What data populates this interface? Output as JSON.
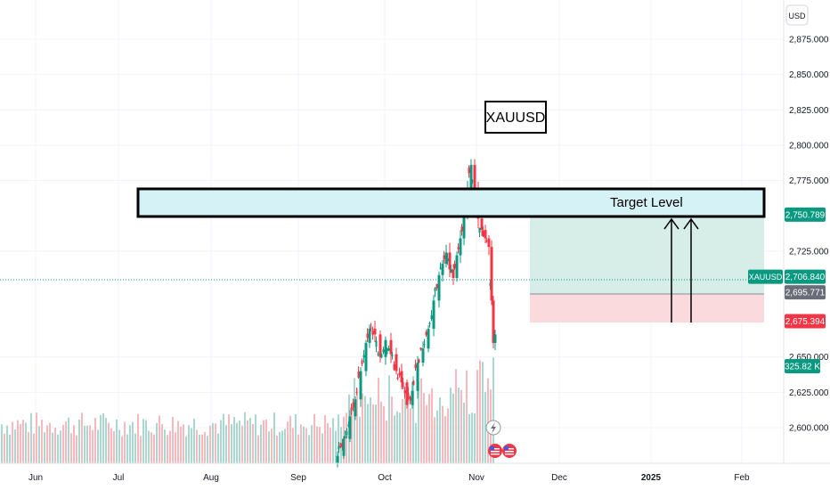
{
  "chart_data": {
    "type": "candlestick",
    "symbol": "XAUUSD",
    "currency": "USD",
    "y_ticks": [
      {
        "value": 2875,
        "label": "2,875.000"
      },
      {
        "value": 2850,
        "label": "2,850.000"
      },
      {
        "value": 2825,
        "label": "2,825.000"
      },
      {
        "value": 2800,
        "label": "2,800.000"
      },
      {
        "value": 2775,
        "label": "2,775.000"
      },
      {
        "value": 2725,
        "label": "2,725.000"
      },
      {
        "value": 2650,
        "label": "2,650.000"
      },
      {
        "value": 2625,
        "label": "2,625.000"
      },
      {
        "value": 2600,
        "label": "2,600.000"
      }
    ],
    "time_ticks": [
      {
        "label": "Jun",
        "bold": false
      },
      {
        "label": "Jul",
        "bold": false
      },
      {
        "label": "Aug",
        "bold": false
      },
      {
        "label": "Sep",
        "bold": false
      },
      {
        "label": "Oct",
        "bold": false
      },
      {
        "label": "Nov",
        "bold": false
      },
      {
        "label": "Dec",
        "bold": false
      },
      {
        "label": "2025",
        "bold": true
      },
      {
        "label": "Feb",
        "bold": false
      }
    ],
    "price_badges": [
      {
        "name": "target",
        "value": 2750.789,
        "label": "2,750.789",
        "color": "#089981"
      },
      {
        "name": "symbol-last",
        "value": 2706.84,
        "label": "2,706.840",
        "color": "#089981",
        "tag": "XAUUSD"
      },
      {
        "name": "entry",
        "value": 2695.771,
        "label": "2,695.771",
        "color": "#6a6d78"
      },
      {
        "name": "stop",
        "value": 2675.394,
        "label": "2,675.394",
        "color": "#f23645"
      }
    ],
    "volume_badge": {
      "label": "325.82 K",
      "color": "#089981"
    },
    "annotations": {
      "symbol_box": "XAUUSD",
      "target_label": "Target Level"
    },
    "colors": {
      "up": "#089981",
      "down": "#f23645",
      "vol_up": "#a8d8cf",
      "vol_down": "#f7b9bd",
      "zone": "#d5f3f7",
      "profit": "#d6ede8",
      "loss": "#fbdadd"
    }
  },
  "icons": {
    "flash": "lightning-icon",
    "flags": "us-flag-icon"
  }
}
